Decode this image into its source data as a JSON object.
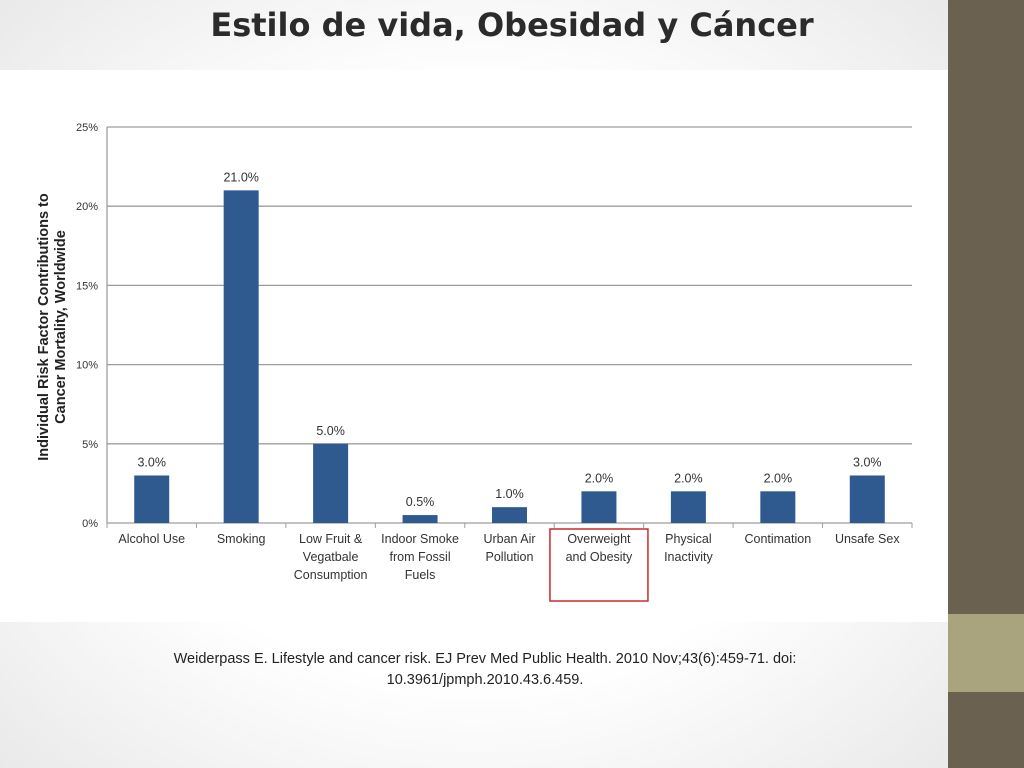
{
  "slide": {
    "title": "Estilo de vida, Obesidad y Cáncer",
    "citation_line1": "Weiderpass E. Lifestyle and cancer risk. EJ Prev Med Public Health. 2010 Nov;43(6):459-71. doi:",
    "citation_line2": "10.3961/jpmph.2010.43.6.459."
  },
  "colors": {
    "bar": "#2e5a8f",
    "highlight_box": "#cc2a2a",
    "side_strip_dark": "#6b6150",
    "side_strip_light": "#a9a47e",
    "gridline": "#9e9e9e"
  },
  "chart_data": {
    "type": "bar",
    "title": "",
    "ylabel_lines": [
      "Individual Risk Factor Contributions to",
      "Cancer Mortality, Worldwide"
    ],
    "xlabel": "",
    "ylim": [
      0,
      25
    ],
    "yticks": [
      0,
      5,
      10,
      15,
      20,
      25
    ],
    "ytick_labels": [
      "0%",
      "5%",
      "10%",
      "15%",
      "20%",
      "25%"
    ],
    "grid": true,
    "categories": [
      [
        "Alcohol Use"
      ],
      [
        "Smoking"
      ],
      [
        "Low Fruit &",
        "Vegatbale",
        "Consumption"
      ],
      [
        "Indoor Smoke",
        "from Fossil",
        "Fuels"
      ],
      [
        "Urban Air",
        "Pollution"
      ],
      [
        "Overweight",
        "and Obesity"
      ],
      [
        "Physical",
        "Inactivity"
      ],
      [
        "Contimation"
      ],
      [
        "Unsafe Sex"
      ]
    ],
    "values": [
      3.0,
      21.0,
      5.0,
      0.5,
      1.0,
      2.0,
      2.0,
      2.0,
      3.0
    ],
    "value_labels": [
      "3.0%",
      "21.0%",
      "5.0%",
      "0.5%",
      "1.0%",
      "2.0%",
      "2.0%",
      "2.0%",
      "3.0%"
    ],
    "highlighted_category_index": 5
  }
}
